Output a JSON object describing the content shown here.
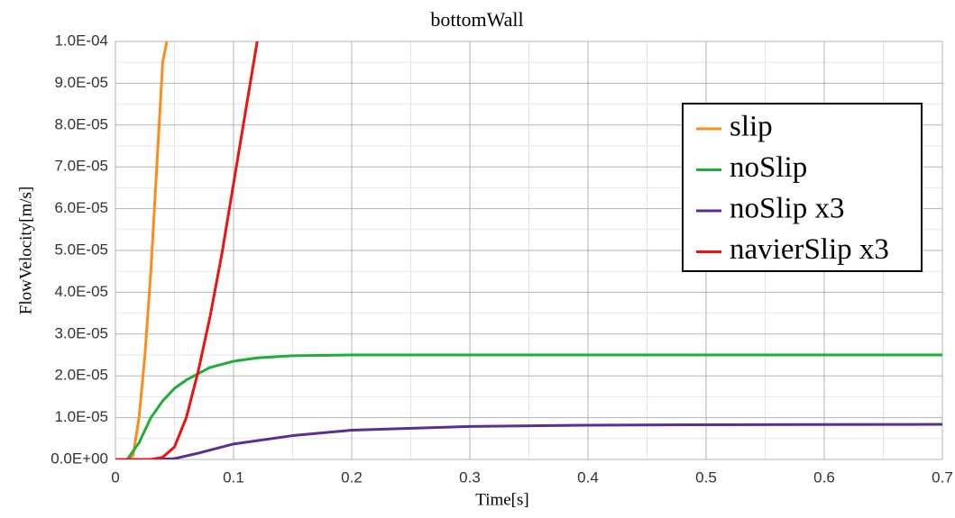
{
  "chart_data": {
    "type": "line",
    "title": "bottomWall",
    "x_label": "Time[s]",
    "y_label": "FlowVelocity[m/s]",
    "xlim": [
      0,
      0.7
    ],
    "xticks": [
      0,
      0.1,
      0.2,
      0.3,
      0.4,
      0.5,
      0.6,
      0.7
    ],
    "ylim": [
      0,
      0.0001
    ],
    "yticks": [
      {
        "value": 0,
        "label": "0.0E+00"
      },
      {
        "value": 1e-05,
        "label": "1.0E-05"
      },
      {
        "value": 2e-05,
        "label": "2.0E-05"
      },
      {
        "value": 3e-05,
        "label": "3.0E-05"
      },
      {
        "value": 4e-05,
        "label": "4.0E-05"
      },
      {
        "value": 5e-05,
        "label": "5.0E-05"
      },
      {
        "value": 6e-05,
        "label": "6.0E-05"
      },
      {
        "value": 7e-05,
        "label": "7.0E-05"
      },
      {
        "value": 8e-05,
        "label": "8.0E-05"
      },
      {
        "value": 9e-05,
        "label": "9.0E-05"
      },
      {
        "value": 0.0001,
        "label": "1.0E-04"
      }
    ],
    "grid": true,
    "minor_grid": true,
    "legend": "top-right",
    "series": [
      {
        "name": "slip",
        "color": "#ff8c1a",
        "x": [
          0,
          0.01,
          0.015,
          0.02,
          0.025,
          0.03,
          0.035,
          0.04,
          0.0435
        ],
        "values": [
          0,
          0,
          1e-06,
          1e-05,
          2.5e-05,
          4.5e-05,
          7e-05,
          9.5e-05,
          0.0001
        ]
      },
      {
        "name": "noSlip",
        "color": "#1fad3c",
        "x": [
          0,
          0.01,
          0.02,
          0.03,
          0.04,
          0.05,
          0.06,
          0.07,
          0.08,
          0.1,
          0.12,
          0.15,
          0.2,
          0.3,
          0.5,
          0.7
        ],
        "values": [
          0,
          0,
          4e-06,
          1e-05,
          1.4e-05,
          1.7e-05,
          1.9e-05,
          2.05e-05,
          2.2e-05,
          2.35e-05,
          2.43e-05,
          2.48e-05,
          2.5e-05,
          2.5e-05,
          2.5e-05,
          2.5e-05
        ]
      },
      {
        "name": "noSlip x3",
        "color": "#5b2f91",
        "x": [
          0,
          0.03,
          0.05,
          0.07,
          0.1,
          0.15,
          0.2,
          0.3,
          0.4,
          0.5,
          0.7
        ],
        "values": [
          0,
          0,
          2e-07,
          1.5e-06,
          3.7e-06,
          5.7e-06,
          7e-06,
          7.9e-06,
          8.2e-06,
          8.3e-06,
          8.4e-06
        ]
      },
      {
        "name": "navierSlip x3",
        "color": "#ee1111",
        "x": [
          0,
          0.03,
          0.04,
          0.05,
          0.06,
          0.07,
          0.08,
          0.09,
          0.1,
          0.11,
          0.12
        ],
        "values": [
          0,
          0,
          5e-07,
          3e-06,
          1e-05,
          2.1e-05,
          3.4e-05,
          4.9e-05,
          6.6e-05,
          8.3e-05,
          0.0001
        ]
      }
    ]
  }
}
